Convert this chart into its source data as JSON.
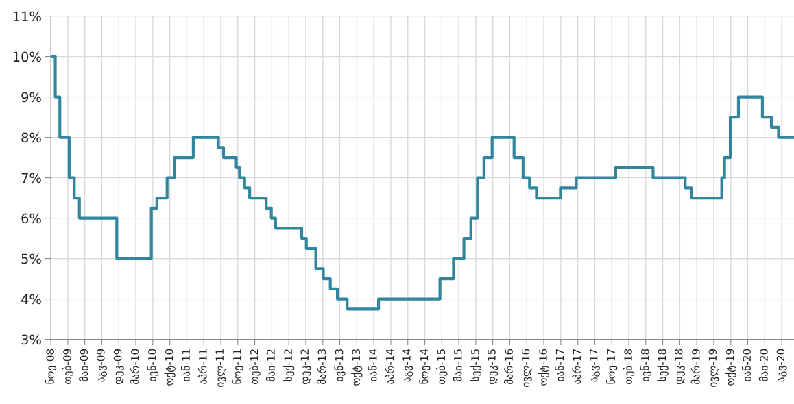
{
  "chart_data": {
    "type": "step",
    "grid": true,
    "marker": "none",
    "line_style": "solid",
    "series": [
      {
        "color": "#31869e",
        "x": [
          "2008-11-01",
          "2008-11-27",
          "2008-12-24",
          "2009-02-17",
          "2009-03-19",
          "2009-04-18",
          "2009-11-24",
          "2010-06-15",
          "2010-07-18",
          "2010-09-16",
          "2010-10-28",
          "2011-02-17",
          "2011-07-15",
          "2011-08-14",
          "2011-10-28",
          "2011-11-16",
          "2011-12-16",
          "2012-01-15",
          "2012-04-21",
          "2012-05-21",
          "2012-06-15",
          "2012-11-16",
          "2012-12-13",
          "2013-02-07",
          "2013-03-23",
          "2013-05-03",
          "2013-06-14",
          "2013-08-10",
          "2014-02-11",
          "2015-02-07",
          "2015-04-28",
          "2015-06-28",
          "2015-08-08",
          "2015-09-16",
          "2015-10-24",
          "2015-12-11",
          "2016-04-18",
          "2016-06-10",
          "2016-07-18",
          "2016-08-28",
          "2017-01-16",
          "2017-04-19",
          "2017-12-07",
          "2018-07-15",
          "2019-01-20",
          "2019-02-26",
          "2019-08-23",
          "2019-09-08",
          "2019-10-12",
          "2019-11-29",
          "2020-04-18",
          "2020-06-10",
          "2020-07-22",
          "2020-10-21"
        ],
        "values": [
          10,
          9,
          8,
          7,
          6.5,
          6,
          5,
          6.25,
          6.5,
          7,
          7.5,
          8,
          7.75,
          7.5,
          7.25,
          7,
          6.75,
          6.5,
          6.25,
          6,
          5.75,
          5.5,
          5.25,
          4.75,
          4.5,
          4.25,
          4,
          3.75,
          4,
          4.5,
          5,
          5.5,
          6,
          7,
          7.5,
          8,
          7.5,
          7,
          6.75,
          6.5,
          6.75,
          7,
          7.25,
          7,
          6.75,
          6.5,
          7,
          7.5,
          8.5,
          9,
          8.5,
          8.25,
          8,
          8
        ]
      }
    ],
    "ylim": [
      3,
      11
    ],
    "yticks": [
      {
        "value": 3,
        "label": "3%"
      },
      {
        "value": 4,
        "label": "4%"
      },
      {
        "value": 5,
        "label": "5%"
      },
      {
        "value": 6,
        "label": "6%"
      },
      {
        "value": 7,
        "label": "7%"
      },
      {
        "value": 8,
        "label": "8%"
      },
      {
        "value": 9,
        "label": "9%"
      },
      {
        "value": 10,
        "label": "10%"
      },
      {
        "value": 11,
        "label": "11%"
      }
    ],
    "xlim": [
      "2008-11-01",
      "2020-10-21"
    ],
    "xticks": [
      {
        "value": "2008-11-01",
        "label": "ნოე-08"
      },
      {
        "value": "2009-02-09",
        "label": "თებ-09"
      },
      {
        "value": "2009-05-20",
        "label": "მაი-09"
      },
      {
        "value": "2009-08-28",
        "label": "აგვ-09"
      },
      {
        "value": "2009-12-06",
        "label": "დეკ-09"
      },
      {
        "value": "2010-03-16",
        "label": "მარ-10"
      },
      {
        "value": "2010-06-24",
        "label": "ივნ-10"
      },
      {
        "value": "2010-10-02",
        "label": "ოქტ-10"
      },
      {
        "value": "2011-01-10",
        "label": "იან-11"
      },
      {
        "value": "2011-04-20",
        "label": "აპრ-11"
      },
      {
        "value": "2011-07-29",
        "label": "ივლ-11"
      },
      {
        "value": "2011-11-06",
        "label": "ნოე-11"
      },
      {
        "value": "2012-02-14",
        "label": "თებ-12"
      },
      {
        "value": "2012-05-24",
        "label": "მაი-12"
      },
      {
        "value": "2012-09-01",
        "label": "სექ-12"
      },
      {
        "value": "2012-12-10",
        "label": "დეკ-12"
      },
      {
        "value": "2013-03-20",
        "label": "მარ-13"
      },
      {
        "value": "2013-06-28",
        "label": "ივნ-13"
      },
      {
        "value": "2013-10-06",
        "label": "ოქტ-13"
      },
      {
        "value": "2014-01-14",
        "label": "იან-14"
      },
      {
        "value": "2014-04-24",
        "label": "აპრ-14"
      },
      {
        "value": "2014-08-02",
        "label": "აგვ-14"
      },
      {
        "value": "2014-11-10",
        "label": "ნოე-14"
      },
      {
        "value": "2015-02-18",
        "label": "თებ-15"
      },
      {
        "value": "2015-05-29",
        "label": "მაი-15"
      },
      {
        "value": "2015-09-06",
        "label": "სექ-15"
      },
      {
        "value": "2015-12-15",
        "label": "დეკ-15"
      },
      {
        "value": "2016-03-24",
        "label": "მარ-16"
      },
      {
        "value": "2016-07-02",
        "label": "ივლ-16"
      },
      {
        "value": "2016-10-10",
        "label": "ოქტ-16"
      },
      {
        "value": "2017-01-18",
        "label": "იან-17"
      },
      {
        "value": "2017-04-28",
        "label": "აპრ-17"
      },
      {
        "value": "2017-08-06",
        "label": "აგვ-17"
      },
      {
        "value": "2017-11-14",
        "label": "ნოე-17"
      },
      {
        "value": "2018-02-22",
        "label": "თებ-18"
      },
      {
        "value": "2018-06-02",
        "label": "ივნ-18"
      },
      {
        "value": "2018-09-10",
        "label": "სექ-18"
      },
      {
        "value": "2018-12-19",
        "label": "დეკ-18"
      },
      {
        "value": "2019-03-29",
        "label": "მარ-19"
      },
      {
        "value": "2019-07-07",
        "label": "ივლ-19"
      },
      {
        "value": "2019-10-15",
        "label": "ოქტ-19"
      },
      {
        "value": "2020-01-23",
        "label": "იან-20"
      },
      {
        "value": "2020-05-02",
        "label": "მაი-20"
      },
      {
        "value": "2020-08-10",
        "label": "აგვ-20"
      }
    ]
  }
}
